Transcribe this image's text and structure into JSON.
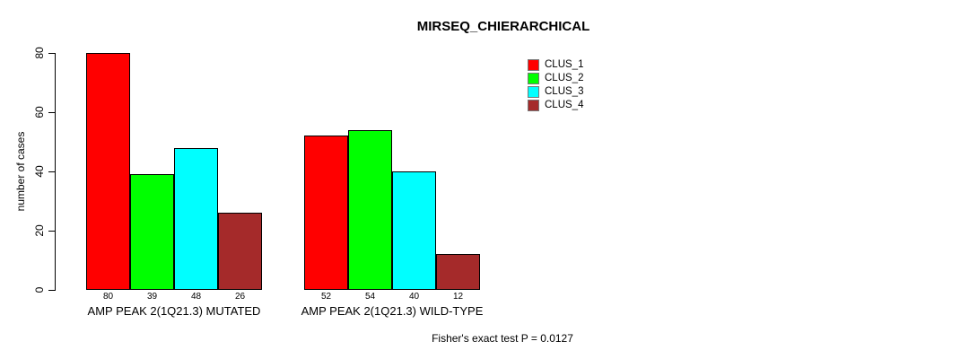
{
  "title": "MIRSEQ_CHIERARCHICAL",
  "footer": "Fisher's exact test P = 0.0127",
  "colors": {
    "clus_1": "#FF0000",
    "clus_2": "#00FF00",
    "clus_3": "#00FFFF",
    "clus_4": "#A52A2A",
    "axis": "#000000",
    "background": "#FFFFFF"
  },
  "chart_data": {
    "type": "bar",
    "title": "MIRSEQ_CHIERARCHICAL",
    "xlabel": "",
    "ylabel": "number of cases",
    "categories": [
      "AMP PEAK 2(1Q21.3) MUTATED",
      "AMP PEAK 2(1Q21.3) WILD-TYPE"
    ],
    "series": [
      {
        "name": "CLUS_1",
        "color": "#FF0000",
        "values": [
          80,
          52
        ]
      },
      {
        "name": "CLUS_2",
        "color": "#00FF00",
        "values": [
          39,
          54
        ]
      },
      {
        "name": "CLUS_3",
        "color": "#00FFFF",
        "values": [
          48,
          40
        ]
      },
      {
        "name": "CLUS_4",
        "color": "#A52A2A",
        "values": [
          26,
          12
        ]
      }
    ],
    "bar_value_labels": [
      [
        80,
        39,
        48,
        26
      ],
      [
        52,
        54,
        40,
        12
      ]
    ],
    "yticks": [
      0,
      20,
      40,
      60,
      80
    ],
    "ylim": [
      0,
      80
    ],
    "grid": false,
    "legend_position": "top-right",
    "annotation": "Fisher's exact test P = 0.0127"
  }
}
